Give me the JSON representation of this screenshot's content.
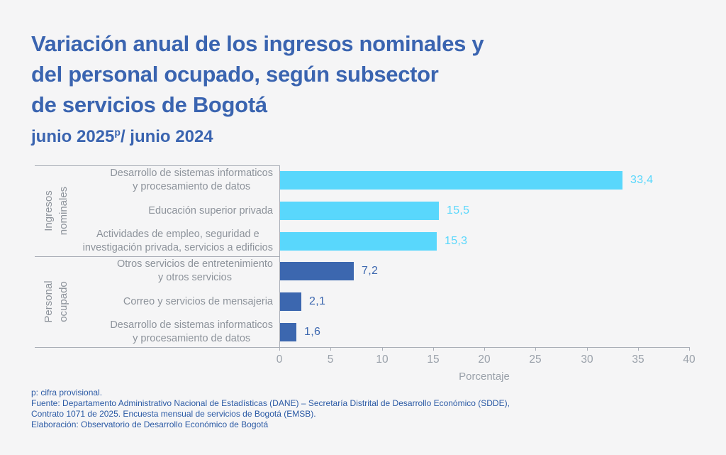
{
  "header": {
    "title": "Variación anual de los ingresos nominales y\ndel personal ocupado, según subsector\nde servicios de Bogotá",
    "subtitle_prefix": "junio 2025",
    "subtitle_sup": "p",
    "subtitle_suffix": "/ junio 2024",
    "title_color": "#3a64b0"
  },
  "chart_data": {
    "type": "bar",
    "orientation": "horizontal",
    "xlabel": "Porcentaje",
    "xlim": [
      0,
      40
    ],
    "xticks": [
      0,
      5,
      10,
      15,
      20,
      25,
      30,
      35,
      40
    ],
    "grid": false,
    "groups": [
      {
        "name": "Ingresos\nnominales",
        "color": "#59d7fc",
        "bars": [
          {
            "label": "Desarrollo de sistemas informaticos\ny procesamiento de datos",
            "value": 33.4,
            "value_label": "33,4"
          },
          {
            "label": "Educación superior privada",
            "value": 15.5,
            "value_label": "15,5"
          },
          {
            "label": "Actividades de empleo, seguridad e\ninvestigación privada, servicios a edificios",
            "value": 15.3,
            "value_label": "15,3"
          }
        ]
      },
      {
        "name": "Personal\nocupado",
        "color": "#3c67af",
        "bars": [
          {
            "label": "Otros servicios de entretenimiento\ny otros servicios",
            "value": 7.2,
            "value_label": "7,2"
          },
          {
            "label": "Correo y servicios de mensajeria",
            "value": 2.1,
            "value_label": "2,1"
          },
          {
            "label": "Desarrollo de sistemas informaticos\ny procesamiento de datos",
            "value": 1.6,
            "value_label": "1,6"
          }
        ]
      }
    ]
  },
  "footnotes": [
    "p: cifra provisional.",
    "Fuente: Departamento Administrativo Nacional de Estadísticas (DANE) – Secretaría Distrital de Desarrollo Económico (SDDE),",
    "Contrato 1071 de 2025. Encuesta mensual de servicios de Bogotá (EMSB).",
    "Elaboración: Observatorio de Desarrollo Económico de Bogotá"
  ]
}
